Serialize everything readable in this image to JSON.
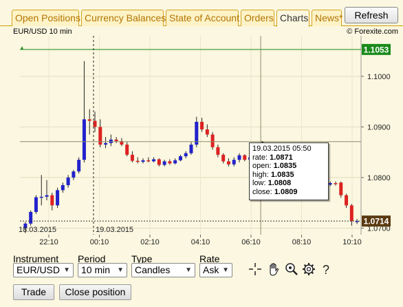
{
  "tabs": [
    {
      "label": "Open Positions",
      "active": false
    },
    {
      "label": "Currency Balances",
      "active": false
    },
    {
      "label": "State of Account",
      "active": false
    },
    {
      "label": "Orders",
      "active": false
    },
    {
      "label": "Charts",
      "active": true
    },
    {
      "label": "News*",
      "active": false
    }
  ],
  "refresh_label": "Refresh",
  "chart_header": {
    "title": "EUR/USD 10 min",
    "copyright": "© Forexite.com"
  },
  "price_labels": {
    "top": "1.1053",
    "current": "1.0714"
  },
  "date_labels": {
    "left": "18.03.2015",
    "right": "19.03.2015"
  },
  "tooltip": {
    "date": "19.03.2015 05:50",
    "rate_label": "rate:",
    "rate": "1.0871",
    "open_label": "open:",
    "open": "1.0835",
    "high_label": "high:",
    "high": "1.0835",
    "low_label": "low:",
    "low": "1.0808",
    "close_label": "close:",
    "close": "1.0809"
  },
  "controls": {
    "instrument_label": "Instrument",
    "instrument_value": "EUR/USD",
    "period_label": "Period",
    "period_value": "10 min",
    "type_label": "Type",
    "type_value": "Candles",
    "rate_label": "Rate",
    "rate_value": "Ask"
  },
  "buttons": {
    "trade": "Trade",
    "close_position": "Close position"
  },
  "colors": {
    "up": "#2222cc",
    "down": "#dd2222",
    "level": "#1a8a1a",
    "current": "#5a3a10"
  },
  "chart_data": {
    "type": "candlestick",
    "title": "EUR/USD 10 min",
    "y_ticks": [
      "1.1000",
      "1.0900",
      "1.0800",
      "1.0700"
    ],
    "x_ticks": [
      "22:10",
      "00:10",
      "02:10",
      "04:10",
      "06:10",
      "08:10",
      "10:10"
    ],
    "ylim": [
      1.0687,
      1.108
    ],
    "level_line": 1.1053,
    "current_price": 1.0714,
    "crosshair_price": 1.0871,
    "candles": [
      {
        "o": 1.07,
        "h": 1.0712,
        "l": 1.069,
        "c": 1.0709
      },
      {
        "o": 1.0709,
        "h": 1.0735,
        "l": 1.0705,
        "c": 1.0732
      },
      {
        "o": 1.0732,
        "h": 1.0765,
        "l": 1.0728,
        "c": 1.0761
      },
      {
        "o": 1.0761,
        "h": 1.0805,
        "l": 1.0745,
        "c": 1.0762
      },
      {
        "o": 1.0762,
        "h": 1.0795,
        "l": 1.0755,
        "c": 1.0765
      },
      {
        "o": 1.0765,
        "h": 1.077,
        "l": 1.0735,
        "c": 1.0745
      },
      {
        "o": 1.0745,
        "h": 1.078,
        "l": 1.074,
        "c": 1.0775
      },
      {
        "o": 1.0775,
        "h": 1.079,
        "l": 1.077,
        "c": 1.0785
      },
      {
        "o": 1.0785,
        "h": 1.0805,
        "l": 1.078,
        "c": 1.08
      },
      {
        "o": 1.08,
        "h": 1.0815,
        "l": 1.0795,
        "c": 1.0812
      },
      {
        "o": 1.0812,
        "h": 1.084,
        "l": 1.0808,
        "c": 1.0835
      },
      {
        "o": 1.0835,
        "h": 1.103,
        "l": 1.083,
        "c": 1.0915
      },
      {
        "o": 1.0915,
        "h": 1.0935,
        "l": 1.0885,
        "c": 1.0912
      },
      {
        "o": 1.0912,
        "h": 1.093,
        "l": 1.089,
        "c": 1.09
      },
      {
        "o": 1.09,
        "h": 1.0915,
        "l": 1.086,
        "c": 1.0865
      },
      {
        "o": 1.0865,
        "h": 1.088,
        "l": 1.0858,
        "c": 1.0868
      },
      {
        "o": 1.0868,
        "h": 1.0885,
        "l": 1.0862,
        "c": 1.0875
      },
      {
        "o": 1.0875,
        "h": 1.088,
        "l": 1.0868,
        "c": 1.0872
      },
      {
        "o": 1.0872,
        "h": 1.0878,
        "l": 1.0862,
        "c": 1.0865
      },
      {
        "o": 1.0865,
        "h": 1.087,
        "l": 1.0842,
        "c": 1.0845
      },
      {
        "o": 1.0845,
        "h": 1.0852,
        "l": 1.083,
        "c": 1.0833
      },
      {
        "o": 1.0833,
        "h": 1.084,
        "l": 1.0828,
        "c": 1.0831
      },
      {
        "o": 1.0831,
        "h": 1.0838,
        "l": 1.0828,
        "c": 1.0834
      },
      {
        "o": 1.0834,
        "h": 1.084,
        "l": 1.083,
        "c": 1.0832
      },
      {
        "o": 1.0832,
        "h": 1.084,
        "l": 1.083,
        "c": 1.0836
      },
      {
        "o": 1.0836,
        "h": 1.0838,
        "l": 1.0822,
        "c": 1.0825
      },
      {
        "o": 1.0825,
        "h": 1.0835,
        "l": 1.0822,
        "c": 1.0832
      },
      {
        "o": 1.0832,
        "h": 1.0836,
        "l": 1.0825,
        "c": 1.0828
      },
      {
        "o": 1.0828,
        "h": 1.0838,
        "l": 1.0826,
        "c": 1.0834
      },
      {
        "o": 1.0834,
        "h": 1.0845,
        "l": 1.0832,
        "c": 1.0842
      },
      {
        "o": 1.0842,
        "h": 1.0852,
        "l": 1.0838,
        "c": 1.0848
      },
      {
        "o": 1.0848,
        "h": 1.087,
        "l": 1.0845,
        "c": 1.0865
      },
      {
        "o": 1.0865,
        "h": 1.092,
        "l": 1.086,
        "c": 1.091
      },
      {
        "o": 1.091,
        "h": 1.0918,
        "l": 1.089,
        "c": 1.0895
      },
      {
        "o": 1.0895,
        "h": 1.0905,
        "l": 1.088,
        "c": 1.0885
      },
      {
        "o": 1.0885,
        "h": 1.089,
        "l": 1.0855,
        "c": 1.086
      },
      {
        "o": 1.086,
        "h": 1.0865,
        "l": 1.084,
        "c": 1.0845
      },
      {
        "o": 1.0845,
        "h": 1.0848,
        "l": 1.0828,
        "c": 1.0832
      },
      {
        "o": 1.0832,
        "h": 1.0838,
        "l": 1.0822,
        "c": 1.0826
      },
      {
        "o": 1.0826,
        "h": 1.084,
        "l": 1.0822,
        "c": 1.0835
      },
      {
        "o": 1.0835,
        "h": 1.0848,
        "l": 1.083,
        "c": 1.0844
      },
      {
        "o": 1.0844,
        "h": 1.0846,
        "l": 1.0832,
        "c": 1.0835
      },
      {
        "o": 1.0835,
        "h": 1.0845,
        "l": 1.0832,
        "c": 1.084
      },
      {
        "o": 1.084,
        "h": 1.0843,
        "l": 1.0833,
        "c": 1.0837
      },
      {
        "o": 1.0835,
        "h": 1.0835,
        "l": 1.0808,
        "c": 1.0809
      },
      {
        "o": 1.0809,
        "h": 1.0812,
        "l": 1.0795,
        "c": 1.08
      },
      {
        "o": 1.08,
        "h": 1.0808,
        "l": 1.079,
        "c": 1.0795
      },
      {
        "o": 1.0795,
        "h": 1.0802,
        "l": 1.0785,
        "c": 1.079
      },
      {
        "o": 1.079,
        "h": 1.0795,
        "l": 1.078,
        "c": 1.0785
      },
      {
        "o": 1.0785,
        "h": 1.079,
        "l": 1.0775,
        "c": 1.078
      },
      {
        "o": 1.078,
        "h": 1.0786,
        "l": 1.0772,
        "c": 1.0776
      },
      {
        "o": 1.0776,
        "h": 1.0784,
        "l": 1.077,
        "c": 1.0774
      },
      {
        "o": 1.0774,
        "h": 1.0785,
        "l": 1.0771,
        "c": 1.078
      },
      {
        "o": 1.078,
        "h": 1.0788,
        "l": 1.0776,
        "c": 1.0784
      },
      {
        "o": 1.0784,
        "h": 1.079,
        "l": 1.078,
        "c": 1.0786
      },
      {
        "o": 1.0786,
        "h": 1.0792,
        "l": 1.0782,
        "c": 1.0788
      },
      {
        "o": 1.0788,
        "h": 1.079,
        "l": 1.078,
        "c": 1.0786
      },
      {
        "o": 1.0786,
        "h": 1.0792,
        "l": 1.0783,
        "c": 1.0789
      },
      {
        "o": 1.0789,
        "h": 1.0792,
        "l": 1.0784,
        "c": 1.0787
      },
      {
        "o": 1.079,
        "h": 1.0792,
        "l": 1.076,
        "c": 1.0765
      },
      {
        "o": 1.0765,
        "h": 1.0768,
        "l": 1.074,
        "c": 1.0745
      },
      {
        "o": 1.0745,
        "h": 1.0748,
        "l": 1.0705,
        "c": 1.0714
      },
      {
        "o": 1.0714,
        "h": 1.0718,
        "l": 1.0708,
        "c": 1.0714
      }
    ]
  }
}
